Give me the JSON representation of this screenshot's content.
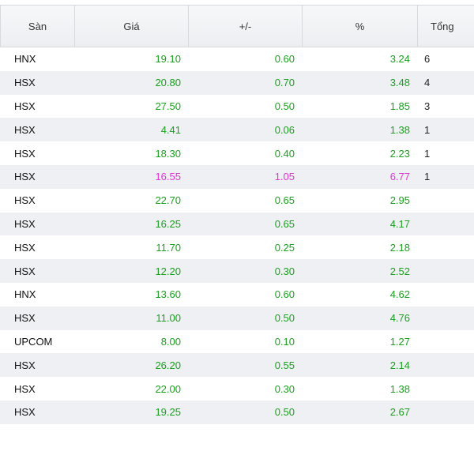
{
  "colors": {
    "up": "#1aa11e",
    "ceiling": "#e235d9"
  },
  "table": {
    "headers": {
      "exchange": "Sàn",
      "price": "Giá",
      "change": "+/-",
      "percent": "%",
      "total": "Tổng"
    },
    "rows": [
      {
        "exchange": "HNX",
        "price": "19.10",
        "change": "0.60",
        "percent": "3.24",
        "total": "6",
        "status": "up"
      },
      {
        "exchange": "HSX",
        "price": "20.80",
        "change": "0.70",
        "percent": "3.48",
        "total": "4",
        "status": "up"
      },
      {
        "exchange": "HSX",
        "price": "27.50",
        "change": "0.50",
        "percent": "1.85",
        "total": "3",
        "status": "up"
      },
      {
        "exchange": "HSX",
        "price": "4.41",
        "change": "0.06",
        "percent": "1.38",
        "total": "1",
        "status": "up"
      },
      {
        "exchange": "HSX",
        "price": "18.30",
        "change": "0.40",
        "percent": "2.23",
        "total": "1",
        "status": "up"
      },
      {
        "exchange": "HSX",
        "price": "16.55",
        "change": "1.05",
        "percent": "6.77",
        "total": "1",
        "status": "ceiling"
      },
      {
        "exchange": "HSX",
        "price": "22.70",
        "change": "0.65",
        "percent": "2.95",
        "total": "",
        "status": "up"
      },
      {
        "exchange": "HSX",
        "price": "16.25",
        "change": "0.65",
        "percent": "4.17",
        "total": "",
        "status": "up"
      },
      {
        "exchange": "HSX",
        "price": "11.70",
        "change": "0.25",
        "percent": "2.18",
        "total": "",
        "status": "up"
      },
      {
        "exchange": "HSX",
        "price": "12.20",
        "change": "0.30",
        "percent": "2.52",
        "total": "",
        "status": "up"
      },
      {
        "exchange": "HNX",
        "price": "13.60",
        "change": "0.60",
        "percent": "4.62",
        "total": "",
        "status": "up"
      },
      {
        "exchange": "HSX",
        "price": "11.00",
        "change": "0.50",
        "percent": "4.76",
        "total": "",
        "status": "up"
      },
      {
        "exchange": "UPCOM",
        "price": "8.00",
        "change": "0.10",
        "percent": "1.27",
        "total": "",
        "status": "up"
      },
      {
        "exchange": "HSX",
        "price": "26.20",
        "change": "0.55",
        "percent": "2.14",
        "total": "",
        "status": "up"
      },
      {
        "exchange": "HSX",
        "price": "22.00",
        "change": "0.30",
        "percent": "1.38",
        "total": "",
        "status": "up"
      },
      {
        "exchange": "HSX",
        "price": "19.25",
        "change": "0.50",
        "percent": "2.67",
        "total": "",
        "status": "up"
      }
    ]
  }
}
